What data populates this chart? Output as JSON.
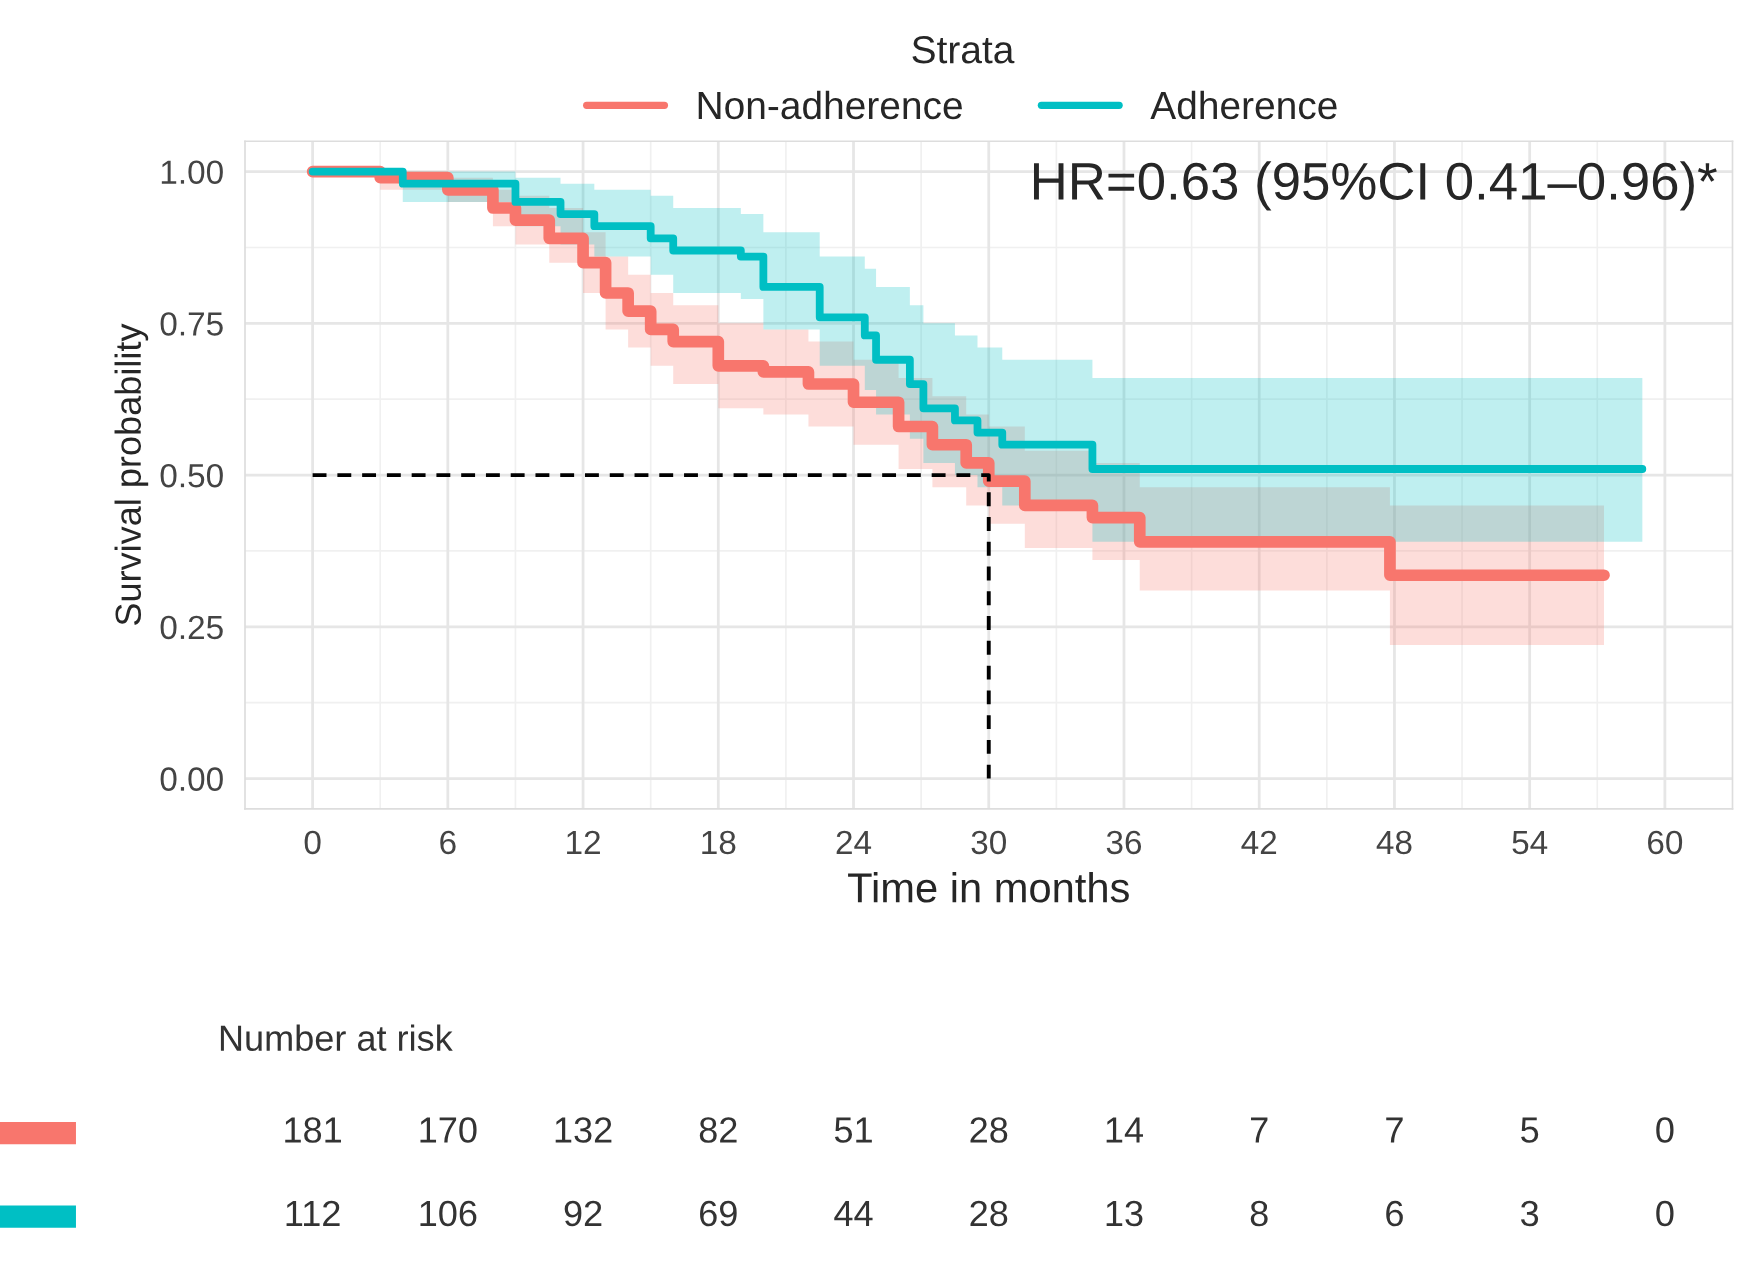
{
  "chart_data": [
    {
      "type": "step",
      "xlabel": "Time in months",
      "ylabel": "Survival probability",
      "legend_title": "Strata",
      "legend": "top",
      "grid": true,
      "xlim": [
        -3,
        63
      ],
      "xticks": [
        0,
        6,
        12,
        18,
        24,
        30,
        36,
        42,
        48,
        54,
        60
      ],
      "ylim": [
        -0.05,
        1.05
      ],
      "yticks": [
        {
          "value": 0,
          "label": "0.00"
        },
        {
          "value": 0.25,
          "label": "0.25"
        },
        {
          "value": 0.5,
          "label": "0.50"
        },
        {
          "value": 0.75,
          "label": "0.75"
        },
        {
          "value": 1,
          "label": "1.00"
        }
      ],
      "annotations": [
        "HR=0.63 (95%CI 0.41–0.96)*"
      ],
      "series": [
        {
          "name": "Non-adherence",
          "color": "#f8766d",
          "x": [
            0,
            3,
            6,
            8,
            9,
            10.5,
            12,
            13,
            14,
            15,
            16,
            18,
            20,
            22,
            24,
            26,
            27.5,
            29,
            30,
            31.6,
            34.6,
            36.7,
            47.8,
            57.3
          ],
          "values": [
            1,
            0.99,
            0.97,
            0.94,
            0.92,
            0.89,
            0.85,
            0.8,
            0.77,
            0.74,
            0.72,
            0.68,
            0.67,
            0.65,
            0.62,
            0.58,
            0.55,
            0.52,
            0.49,
            0.45,
            0.43,
            0.39,
            0.335,
            0.335
          ],
          "upper": [
            1,
            1,
            0.99,
            0.97,
            0.96,
            0.94,
            0.9,
            0.86,
            0.83,
            0.8,
            0.78,
            0.75,
            0.74,
            0.72,
            0.69,
            0.66,
            0.63,
            0.6,
            0.58,
            0.54,
            0.52,
            0.48,
            0.45,
            0.45
          ],
          "lower": [
            1,
            0.97,
            0.95,
            0.91,
            0.88,
            0.85,
            0.8,
            0.74,
            0.71,
            0.68,
            0.65,
            0.61,
            0.6,
            0.58,
            0.55,
            0.51,
            0.48,
            0.45,
            0.42,
            0.38,
            0.36,
            0.31,
            0.22,
            0.22
          ]
        },
        {
          "name": "Adherence",
          "color": "#00bfc4",
          "x": [
            0,
            4,
            9,
            11,
            12.5,
            15,
            16,
            19,
            20,
            22.5,
            24.5,
            25,
            26.5,
            27.1,
            28.5,
            29.5,
            30.6,
            34.6,
            59
          ],
          "values": [
            1,
            0.98,
            0.95,
            0.93,
            0.91,
            0.89,
            0.87,
            0.86,
            0.81,
            0.76,
            0.73,
            0.69,
            0.65,
            0.61,
            0.59,
            0.57,
            0.55,
            0.51,
            0.51
          ],
          "upper": [
            1,
            1,
            0.99,
            0.98,
            0.97,
            0.96,
            0.94,
            0.93,
            0.9,
            0.86,
            0.84,
            0.81,
            0.78,
            0.75,
            0.73,
            0.71,
            0.69,
            0.66,
            0.66
          ],
          "lower": [
            1,
            0.95,
            0.91,
            0.88,
            0.86,
            0.83,
            0.8,
            0.79,
            0.74,
            0.68,
            0.64,
            0.6,
            0.56,
            0.52,
            0.5,
            0.48,
            0.45,
            0.39,
            0.39
          ]
        },
        {
          "type": "line",
          "line_style": "dashed",
          "color": "#000000",
          "x": [
            0,
            30,
            30
          ],
          "values": [
            0.5,
            0.5,
            0
          ]
        }
      ]
    },
    {
      "type": "heatmap",
      "title": "Number at risk",
      "data_labels": true,
      "categories": [
        null,
        null,
        null,
        null,
        null,
        null,
        null,
        null,
        null,
        null,
        null
      ],
      "y_categories": [
        null,
        null
      ],
      "cells": [
        [
          181,
          170,
          132,
          82,
          51,
          28,
          14,
          7,
          7,
          5,
          0
        ],
        [
          112,
          106,
          92,
          69,
          44,
          28,
          13,
          8,
          6,
          3,
          0
        ]
      ]
    }
  ]
}
